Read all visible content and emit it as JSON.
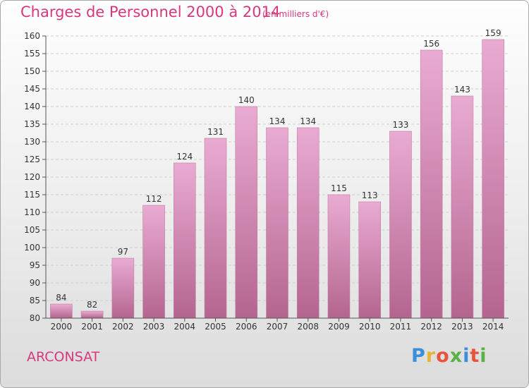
{
  "title": "Charges de Personnel 2000 à 2014",
  "subtitle": "(en milliers d'€)",
  "commune": "ARCONSAT",
  "logo": {
    "text": "Proxiti",
    "letter_colors": [
      "#3b8fd9",
      "#e8b437",
      "#e8533c",
      "#5ab245",
      "#3b8fd9",
      "#e8533c",
      "#5ab245"
    ]
  },
  "colors": {
    "bar_top": "#e9abd2",
    "bar_bottom": "#b4658f",
    "title": "#d7387e"
  },
  "chart_data": {
    "type": "bar",
    "title": "Charges de Personnel 2000 à 2014",
    "subtitle": "(en milliers d'€)",
    "categories": [
      "2000",
      "2001",
      "2002",
      "2003",
      "2004",
      "2005",
      "2006",
      "2007",
      "2008",
      "2009",
      "2010",
      "2011",
      "2012",
      "2013",
      "2014"
    ],
    "values": [
      84,
      82,
      97,
      112,
      124,
      131,
      140,
      134,
      134,
      115,
      113,
      133,
      156,
      143,
      159
    ],
    "ylim": [
      80,
      160
    ],
    "yticks": [
      80,
      85,
      90,
      95,
      100,
      105,
      110,
      115,
      120,
      125,
      130,
      135,
      140,
      145,
      150,
      155,
      160
    ],
    "grid": true,
    "xlabel": "",
    "ylabel": ""
  }
}
